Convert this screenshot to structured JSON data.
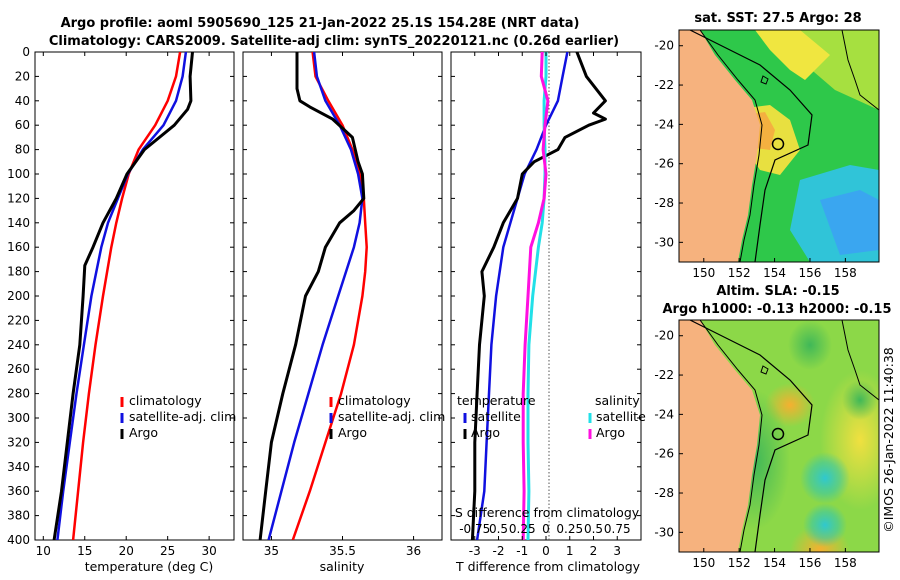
{
  "header": {
    "title_line1": "Argo profile: aoml 5905690_125 21-Jan-2022 25.1S 154.28E (NRT data)",
    "title_line2": "Climatology: CARS2009. Satellite-adj clim: synTS_20220121.nc (0.26d earlier)"
  },
  "colors": {
    "climatology": "#ff0000",
    "satellite": "#1010e0",
    "argo": "#000000",
    "sal_satellite": "#22e0e8",
    "sal_argo": "#ff10e0",
    "land": "#f6b27e"
  },
  "chart_data": [
    {
      "type": "line",
      "panel": "temperature",
      "title": "",
      "xlabel": "temperature (deg C)",
      "ylabel": "",
      "xlim": [
        9,
        33
      ],
      "ylim": [
        400,
        0
      ],
      "xticks": [
        "10",
        "15",
        "20",
        "25",
        "30"
      ],
      "yticks": [
        "0",
        "20",
        "40",
        "60",
        "80",
        "100",
        "120",
        "140",
        "160",
        "180",
        "200",
        "220",
        "240",
        "260",
        "280",
        "300",
        "320",
        "340",
        "360",
        "380",
        "400"
      ],
      "legend": [
        "climatology",
        "satellite-adj. clim",
        "Argo"
      ],
      "legend_position": "lower-right",
      "series": [
        {
          "name": "climatology",
          "depth": [
            0,
            20,
            40,
            60,
            80,
            100,
            120,
            140,
            160,
            200,
            240,
            280,
            320,
            360,
            400
          ],
          "values": [
            26.5,
            26.0,
            25.0,
            23.5,
            21.5,
            20.3,
            19.5,
            18.8,
            18.2,
            17.2,
            16.3,
            15.5,
            14.8,
            14.2,
            13.6
          ]
        },
        {
          "name": "satellite-adj. clim",
          "depth": [
            0,
            20,
            40,
            60,
            80,
            100,
            120,
            140,
            160,
            200,
            240,
            280,
            320,
            360,
            400
          ],
          "values": [
            27.2,
            26.8,
            26.0,
            24.5,
            22.0,
            20.2,
            19.0,
            17.8,
            17.0,
            15.8,
            14.9,
            14.0,
            13.2,
            12.4,
            11.7
          ]
        },
        {
          "name": "Argo",
          "depth": [
            0,
            20,
            40,
            47,
            60,
            80,
            100,
            120,
            140,
            160,
            175,
            200,
            240,
            280,
            320,
            360,
            400
          ],
          "values": [
            28.0,
            27.7,
            27.8,
            27.4,
            25.8,
            22.2,
            20.1,
            18.8,
            17.2,
            16.0,
            15.0,
            14.8,
            14.4,
            13.6,
            12.9,
            12.2,
            11.3
          ]
        }
      ]
    },
    {
      "type": "line",
      "panel": "salinity",
      "title": "",
      "xlabel": "salinity",
      "ylabel": "",
      "xlim": [
        34.8,
        36.2
      ],
      "ylim": [
        400,
        0
      ],
      "xticks": [
        "35",
        "35.5",
        "36"
      ],
      "legend": [
        "climatology",
        "satellite-adj. clim",
        "Argo"
      ],
      "legend_position": "lower-right",
      "series": [
        {
          "name": "climatology",
          "depth": [
            0,
            20,
            40,
            60,
            80,
            100,
            120,
            140,
            160,
            180,
            200,
            240,
            280,
            320,
            360,
            400
          ],
          "values": [
            35.29,
            35.31,
            35.4,
            35.5,
            35.57,
            35.62,
            35.65,
            35.66,
            35.67,
            35.66,
            35.64,
            35.58,
            35.49,
            35.38,
            35.27,
            35.15
          ]
        },
        {
          "name": "satellite-adj. clim",
          "depth": [
            0,
            20,
            40,
            60,
            80,
            100,
            120,
            140,
            160,
            200,
            240,
            280,
            320,
            360,
            400
          ],
          "values": [
            35.3,
            35.32,
            35.38,
            35.48,
            35.56,
            35.61,
            35.64,
            35.62,
            35.58,
            35.47,
            35.36,
            35.26,
            35.16,
            35.07,
            34.98
          ]
        },
        {
          "name": "Argo",
          "depth": [
            0,
            15,
            30,
            40,
            45,
            55,
            70,
            90,
            100,
            120,
            130,
            140,
            160,
            180,
            200,
            240,
            280,
            320,
            360,
            400
          ],
          "values": [
            35.18,
            35.18,
            35.18,
            35.2,
            35.27,
            35.43,
            35.57,
            35.61,
            35.64,
            35.65,
            35.58,
            35.48,
            35.38,
            35.33,
            35.24,
            35.17,
            35.08,
            35.0,
            34.96,
            34.92
          ]
        }
      ]
    },
    {
      "type": "line",
      "panel": "difference",
      "title": "",
      "xlabel": "T difference from climatology",
      "xlabel_top": "S difference from climatology",
      "ylabel": "",
      "xlim": [
        -4.0,
        4.0
      ],
      "ylim": [
        400,
        0
      ],
      "xticks": [
        "-3",
        "-2",
        "-1",
        "0",
        "1",
        "2",
        "3"
      ],
      "xticks_top": [
        "-0.75",
        "0.5",
        "0.25",
        "0",
        "0.25",
        "0.5",
        "0.75"
      ],
      "legend_temperature_title": "temperature",
      "legend_salinity_title": "salinity",
      "legend_temperature": [
        "satellite",
        "Argo"
      ],
      "legend_salinity": [
        "satellite",
        "Argo"
      ],
      "legend_position": "lower",
      "series": [
        {
          "name": "T satellite",
          "depth": [
            0,
            20,
            40,
            60,
            80,
            100,
            120,
            140,
            160,
            200,
            240,
            280,
            320,
            360,
            400
          ],
          "values": [
            0.9,
            0.7,
            0.5,
            0.0,
            -0.4,
            -0.9,
            -1.2,
            -1.5,
            -1.8,
            -2.1,
            -2.3,
            -2.4,
            -2.5,
            -2.6,
            -2.9
          ]
        },
        {
          "name": "T Argo",
          "depth": [
            0,
            20,
            40,
            50,
            55,
            60,
            70,
            80,
            90,
            100,
            120,
            140,
            160,
            180,
            200,
            240,
            280,
            320,
            360,
            400
          ],
          "values": [
            1.3,
            1.7,
            2.5,
            2.0,
            2.5,
            1.8,
            0.8,
            0.5,
            -0.5,
            -1.0,
            -1.2,
            -1.8,
            -2.2,
            -2.7,
            -2.6,
            -2.8,
            -2.9,
            -3.0,
            -3.0,
            -3.1
          ]
        },
        {
          "name": "S satellite",
          "depth": [
            0,
            20,
            40,
            60,
            80,
            100,
            120,
            140,
            160,
            200,
            240,
            280,
            320,
            360,
            400
          ],
          "values": [
            0.0,
            0.0,
            -0.02,
            -0.02,
            -0.01,
            -0.01,
            -0.02,
            -0.04,
            -0.08,
            -0.14,
            -0.18,
            -0.19,
            -0.19,
            -0.18,
            -0.19
          ]
        },
        {
          "name": "S Argo",
          "depth": [
            0,
            20,
            40,
            60,
            80,
            100,
            120,
            140,
            160,
            200,
            240,
            280,
            320,
            360,
            400
          ],
          "values": [
            -0.04,
            -0.05,
            0.02,
            -0.01,
            -0.03,
            0.0,
            -0.02,
            -0.08,
            -0.16,
            -0.19,
            -0.22,
            -0.24,
            -0.24,
            -0.23,
            -0.24
          ]
        }
      ]
    }
  ],
  "maps": {
    "sst": {
      "title": "sat. SST: 27.5 Argo: 28",
      "yticks": [
        "-20",
        "-22",
        "-24",
        "-26",
        "-28",
        "-30"
      ],
      "xticks": [
        "150",
        "152",
        "154",
        "156",
        "158"
      ]
    },
    "sla": {
      "title_line1": "Altim. SLA: -0.15",
      "title_line2": "Argo h1000: -0.13 h2000: -0.15",
      "yticks": [
        "-20",
        "-22",
        "-24",
        "-26",
        "-28",
        "-30"
      ],
      "xticks": [
        "150",
        "152",
        "154",
        "156",
        "158"
      ]
    }
  },
  "footer": {
    "credit": "©IMOS 26-Jan-2022 11:40:38"
  }
}
